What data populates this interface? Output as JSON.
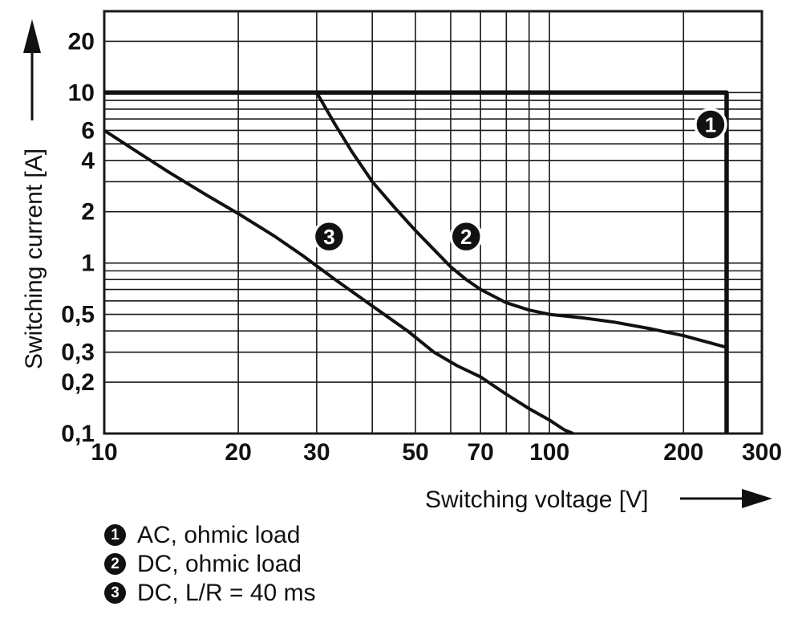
{
  "chart_data": {
    "type": "line",
    "title": "",
    "xlabel": "Switching voltage [V]",
    "ylabel": "Switching current [A]",
    "x_scale": "log",
    "y_scale": "log",
    "xlim": [
      10,
      300
    ],
    "ylim": [
      0.1,
      30
    ],
    "grid": "on",
    "x_grid": [
      10,
      20,
      30,
      40,
      50,
      60,
      70,
      80,
      90,
      100,
      200,
      300
    ],
    "y_grid": [
      0.1,
      0.2,
      0.3,
      0.4,
      0.5,
      0.6,
      0.7,
      0.8,
      0.9,
      1,
      2,
      3,
      4,
      5,
      6,
      7,
      8,
      9,
      10,
      20
    ],
    "x_ticks": [
      {
        "v": 10,
        "label": "10"
      },
      {
        "v": 20,
        "label": "20"
      },
      {
        "v": 30,
        "label": "30"
      },
      {
        "v": 50,
        "label": "50"
      },
      {
        "v": 70,
        "label": "70"
      },
      {
        "v": 100,
        "label": "100"
      },
      {
        "v": 200,
        "label": "200"
      },
      {
        "v": 300,
        "label": "300"
      }
    ],
    "y_ticks": [
      {
        "v": 20,
        "label": "20"
      },
      {
        "v": 10,
        "label": "10"
      },
      {
        "v": 6,
        "label": "6"
      },
      {
        "v": 4,
        "label": "4"
      },
      {
        "v": 2,
        "label": "2"
      },
      {
        "v": 1,
        "label": "1"
      },
      {
        "v": 0.5,
        "label": "0,5"
      },
      {
        "v": 0.3,
        "label": "0,3"
      },
      {
        "v": 0.2,
        "label": "0,2"
      },
      {
        "v": 0.1,
        "label": "0,1"
      }
    ],
    "series": [
      {
        "id": "1",
        "name": "AC, ohmic load",
        "width": 5.5,
        "points": [
          [
            10,
            10
          ],
          [
            250,
            10
          ],
          [
            250,
            0.1
          ]
        ]
      },
      {
        "id": "2",
        "name": "DC, ohmic load",
        "width": 4,
        "points": [
          [
            30,
            10
          ],
          [
            33,
            6.5
          ],
          [
            36,
            4.5
          ],
          [
            40,
            3.0
          ],
          [
            45,
            2.1
          ],
          [
            50,
            1.55
          ],
          [
            55,
            1.2
          ],
          [
            60,
            0.95
          ],
          [
            65,
            0.8
          ],
          [
            70,
            0.7
          ],
          [
            80,
            0.585
          ],
          [
            90,
            0.53
          ],
          [
            100,
            0.5
          ],
          [
            120,
            0.475
          ],
          [
            140,
            0.45
          ],
          [
            170,
            0.41
          ],
          [
            200,
            0.375
          ],
          [
            250,
            0.32
          ]
        ]
      },
      {
        "id": "3",
        "name": "DC, L/R = 40 ms",
        "width": 4,
        "points": [
          [
            10,
            6
          ],
          [
            12,
            4.4
          ],
          [
            14,
            3.4
          ],
          [
            17,
            2.5
          ],
          [
            20,
            1.95
          ],
          [
            24,
            1.45
          ],
          [
            28,
            1.1
          ],
          [
            33,
            0.8
          ],
          [
            40,
            0.56
          ],
          [
            48,
            0.4
          ],
          [
            55,
            0.3
          ],
          [
            62,
            0.25
          ],
          [
            70,
            0.215
          ],
          [
            80,
            0.17
          ],
          [
            90,
            0.14
          ],
          [
            100,
            0.12
          ],
          [
            108,
            0.105
          ],
          [
            113,
            0.1
          ]
        ]
      }
    ],
    "annotations": [
      {
        "label": "1",
        "at_x": 230,
        "at_y": 6.5
      },
      {
        "label": "2",
        "at_x": 65,
        "at_y": 1.43
      },
      {
        "label": "3",
        "at_x": 32,
        "at_y": 1.43
      }
    ]
  },
  "legend": {
    "items": [
      {
        "num": "1",
        "label": "AC, ohmic load"
      },
      {
        "num": "2",
        "label": "DC, ohmic load"
      },
      {
        "num": "3",
        "label": "DC, L/R = 40 ms"
      }
    ]
  },
  "colors": {
    "line": "#111111",
    "grid": "#1a1a1a",
    "marker_bg": "#111111",
    "marker_text": "#ffffff",
    "background": "#ffffff"
  }
}
